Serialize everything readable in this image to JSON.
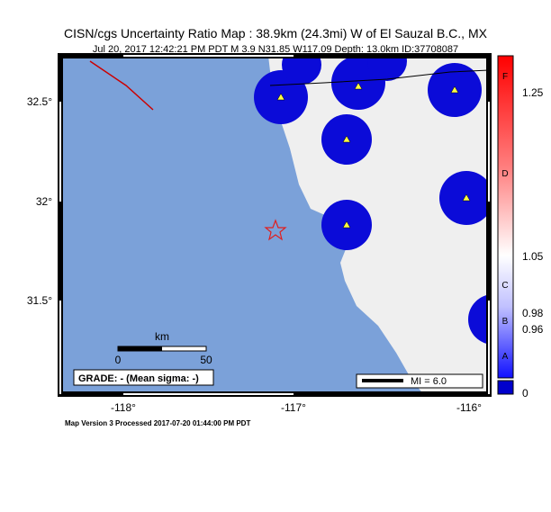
{
  "header": {
    "title": "CISN/cgs Uncertainty Ratio Map : 38.9km (24.3mi) W of El Sauzal B.C., MX",
    "subtitle": "Jul 20, 2017 12:42:21 PM PDT   M 3.9   N31.85 W117.09   Depth: 13.0km   ID:37708087"
  },
  "map": {
    "lat_labels": [
      "32.5°",
      "32°",
      "31.5°"
    ],
    "lon_labels": [
      "-118°",
      "-117°",
      "-116°"
    ],
    "scale": {
      "unit": "km",
      "labels": [
        "0",
        "50"
      ]
    },
    "grade": "GRADE: - (Mean sigma: -)",
    "mi_legend": "MI = 6.0"
  },
  "colorbar": {
    "letters": [
      "F",
      "D",
      "C",
      "B",
      "A"
    ],
    "ticks": [
      "1.25",
      "1.05",
      "0.98",
      "0.96",
      "0"
    ]
  },
  "footer": "Map Version 3 Processed 2017-07-20 01:44:00 PM PDT"
}
